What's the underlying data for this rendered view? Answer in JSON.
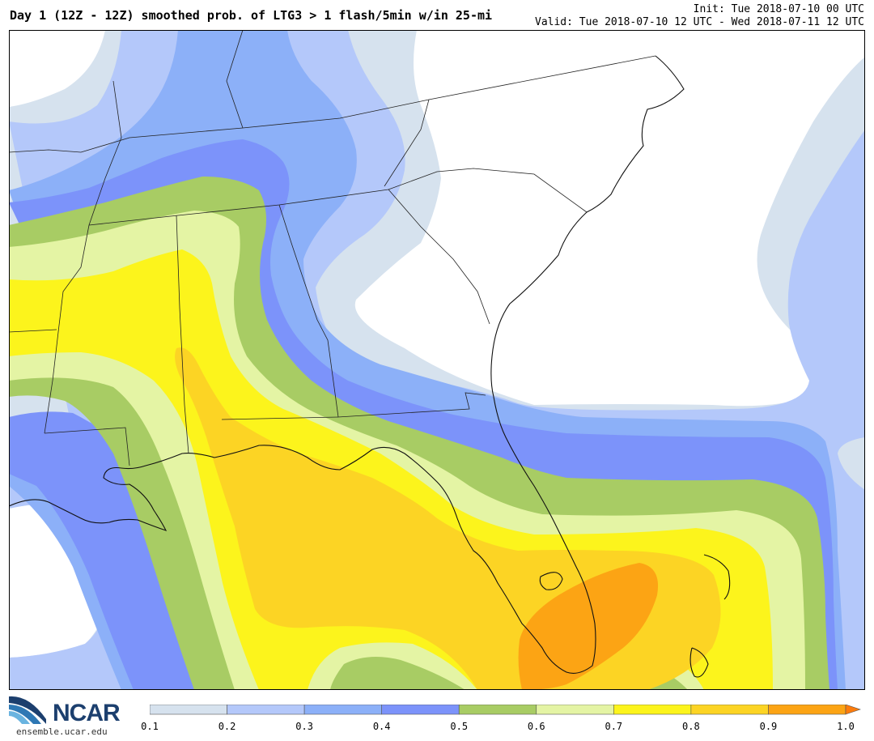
{
  "header": {
    "title": "Day 1 (12Z - 12Z) smoothed prob. of LTG3 > 1 flash/5min w/in 25-mi",
    "init": "Init: Tue 2018-07-10 00 UTC",
    "valid": "Valid: Tue 2018-07-10 12 UTC - Wed 2018-07-11 12 UTC"
  },
  "branding": {
    "logo_text": "NCAR",
    "site": "ensemble.ucar.edu",
    "logo_color": "#1c3f6e"
  },
  "colorbar": {
    "ticks": [
      "0.1",
      "0.2",
      "0.3",
      "0.4",
      "0.5",
      "0.6",
      "0.7",
      "0.8",
      "0.9",
      "1.0"
    ],
    "colors": [
      "#d6e2ee",
      "#b4c8fa",
      "#8cb0f8",
      "#7c93fa",
      "#a8cc64",
      "#e4f4a4",
      "#fcf41c",
      "#fcd424",
      "#fca414"
    ],
    "extend_color": "#fc7c0c"
  },
  "map": {
    "region": "Southeastern United States",
    "features": [
      "probability contours",
      "state borders",
      "coastline"
    ]
  }
}
